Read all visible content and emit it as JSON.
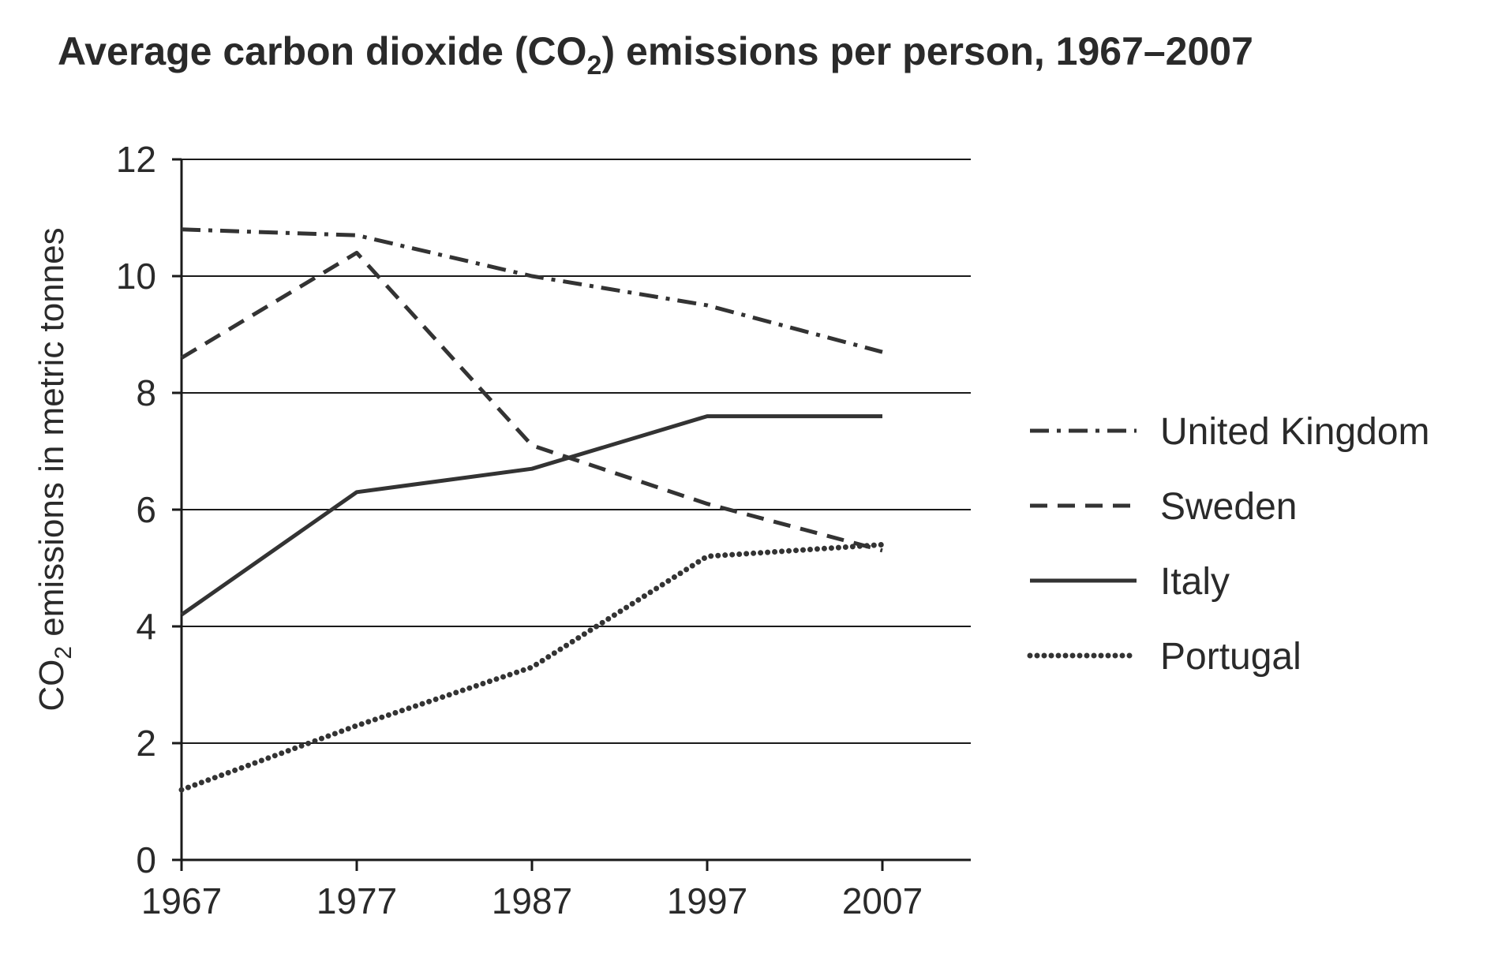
{
  "chart_data": {
    "type": "line",
    "title_prefix": "Average carbon dioxide (CO",
    "title_sub": "2",
    "title_suffix": ") emissions per person, 1967–2007",
    "ylabel_prefix": "CO",
    "ylabel_sub": "2",
    "ylabel_suffix": " emissions in metric tonnes",
    "xlabel": "",
    "x": [
      "1967",
      "1977",
      "1987",
      "1997",
      "2007"
    ],
    "x_values": [
      1967,
      1977,
      1987,
      1997,
      2007
    ],
    "xlim": [
      1967,
      2012
    ],
    "ylim": [
      0,
      12
    ],
    "yticks": [
      "0",
      "2",
      "4",
      "6",
      "8",
      "10",
      "12"
    ],
    "ytick_values": [
      0,
      2,
      4,
      6,
      8,
      10,
      12
    ],
    "grid": "horizontal",
    "legend_position": "right",
    "series": [
      {
        "name": "United Kingdom",
        "style": "dashdot",
        "color": "#333333",
        "values": [
          10.8,
          10.7,
          10.0,
          9.5,
          8.7
        ]
      },
      {
        "name": "Sweden",
        "style": "dashed",
        "color": "#333333",
        "values": [
          8.6,
          10.4,
          7.1,
          6.1,
          5.3
        ]
      },
      {
        "name": "Italy",
        "style": "solid",
        "color": "#333333",
        "values": [
          4.2,
          6.3,
          6.7,
          7.6,
          7.6
        ]
      },
      {
        "name": "Portugal",
        "style": "dotted",
        "color": "#333333",
        "values": [
          1.2,
          2.3,
          3.3,
          5.2,
          5.4
        ]
      }
    ]
  }
}
